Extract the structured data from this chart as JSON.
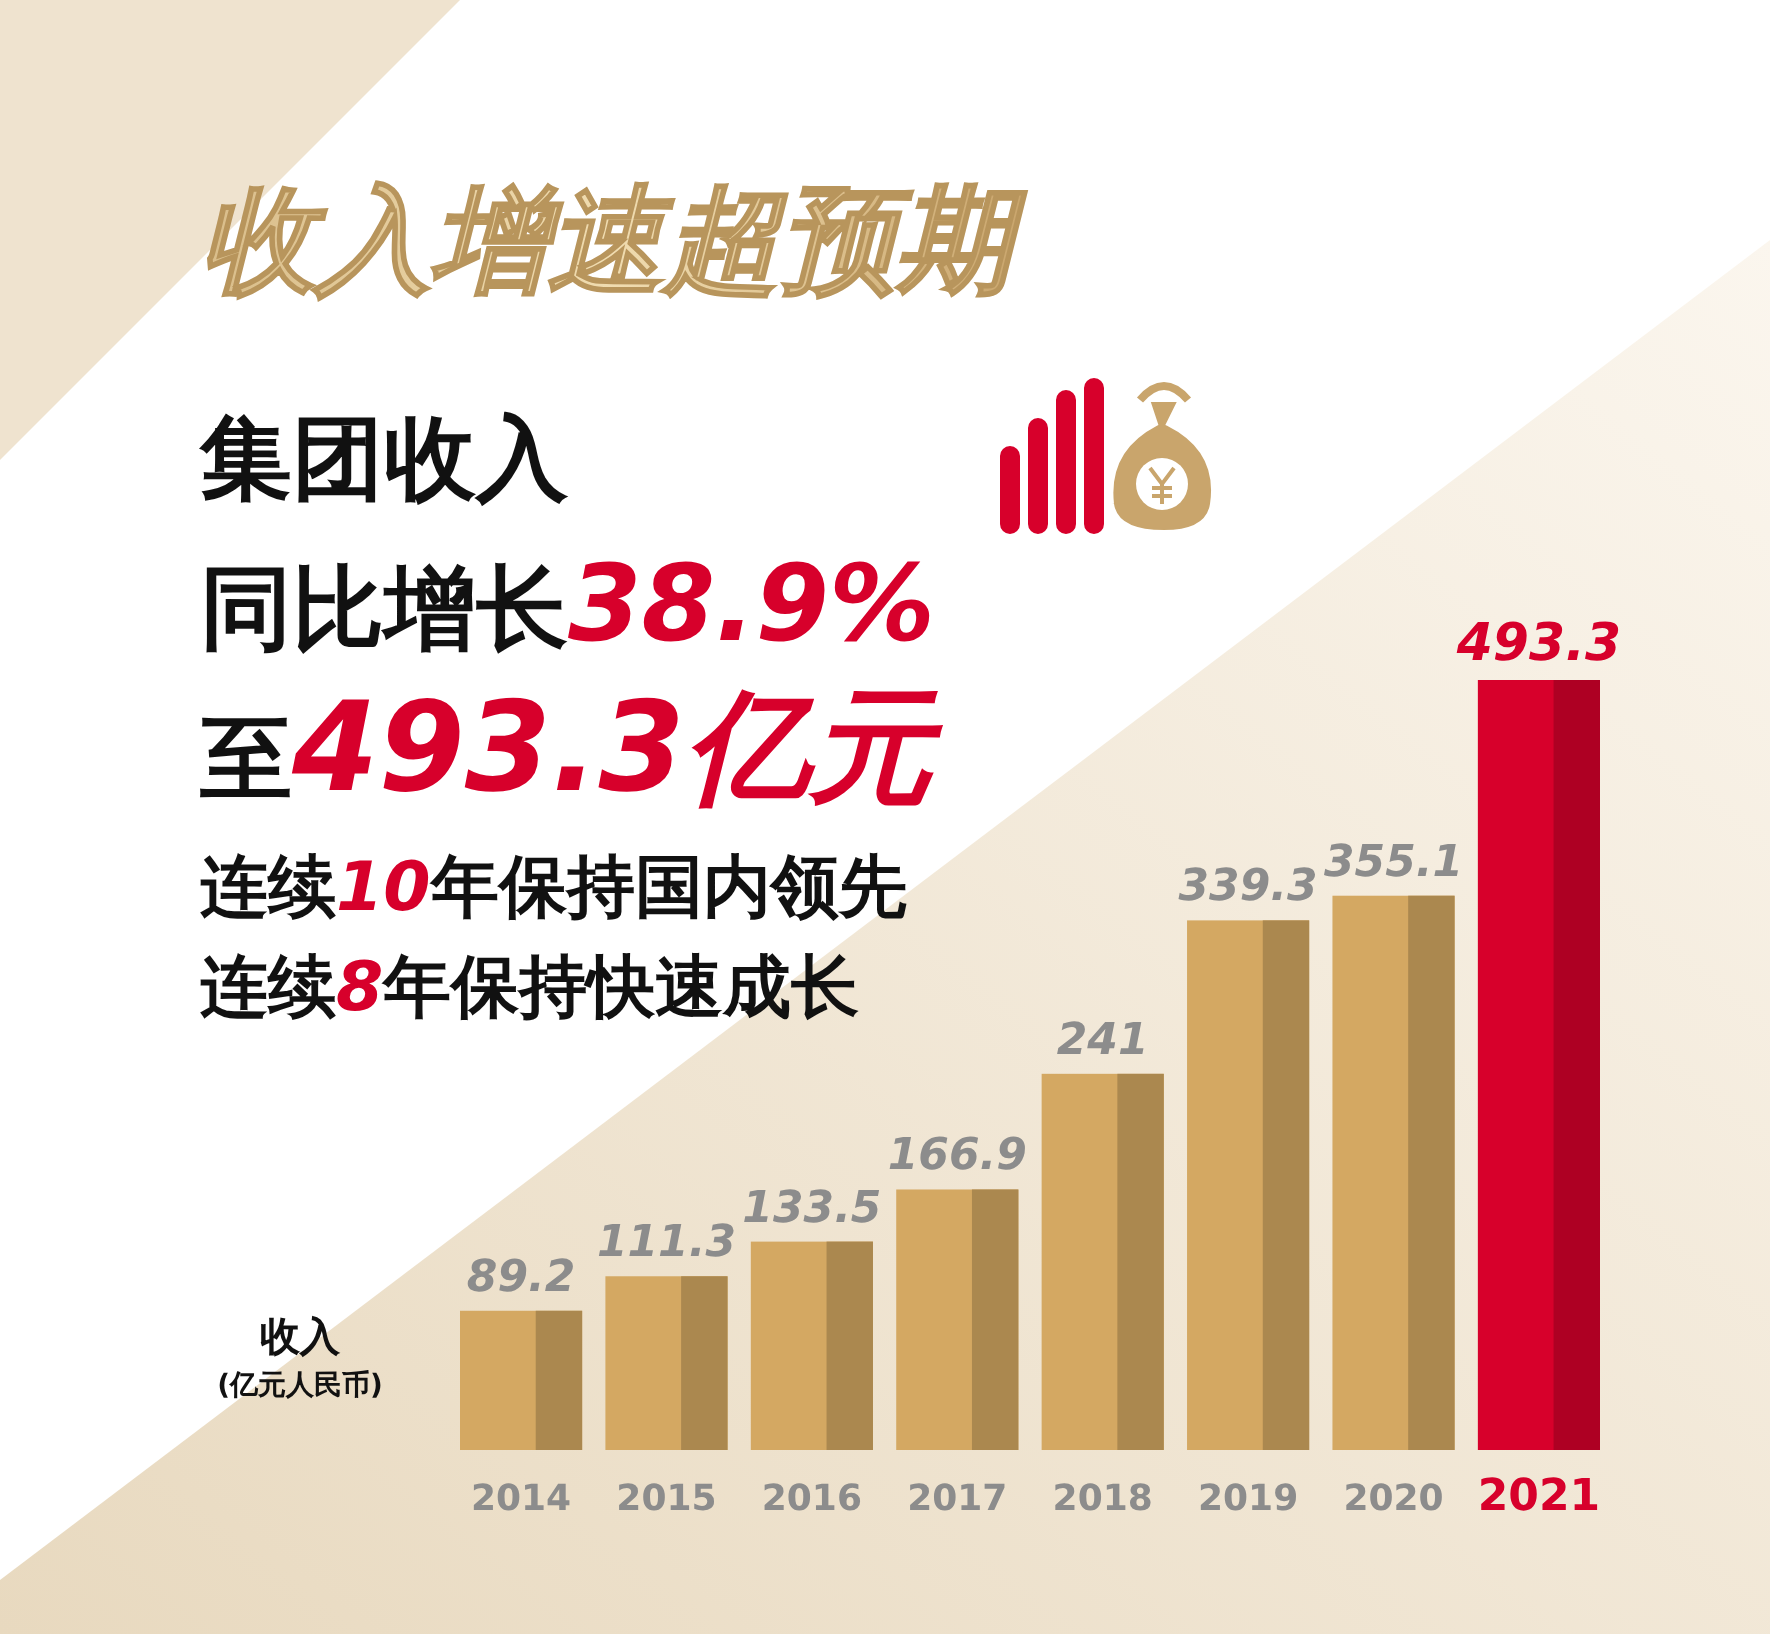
{
  "chart_data": {
    "type": "bar",
    "title": "收入增速超预期",
    "ylabel": "收入 (亿元人民币)",
    "annotations": [
      "集团收入",
      "同比增长38.9%",
      "至493.3亿元",
      "连续10年保持国内领先",
      "连续8年保持快速成长"
    ],
    "categories": [
      "2014",
      "2015",
      "2016",
      "2017",
      "2018",
      "2019",
      "2020",
      "2021"
    ],
    "values": [
      89.2,
      111.3,
      133.5,
      166.9,
      241,
      339.3,
      355.1,
      493.3
    ],
    "colors": [
      "#d4a862",
      "#d4a862",
      "#d4a862",
      "#d4a862",
      "#d4a862",
      "#d4a862",
      "#d4a862",
      "#d7002b"
    ],
    "data_labels": true
  }
}
